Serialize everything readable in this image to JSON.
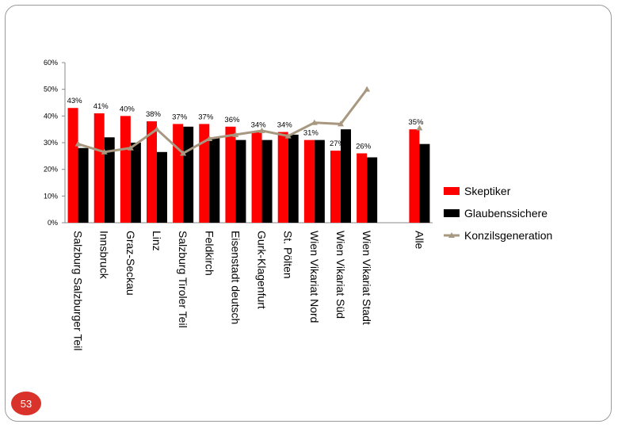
{
  "page_number": "53",
  "chart_data": {
    "type": "bar",
    "categories": [
      "Salzburg Salzburger Teil",
      "Innsbruck",
      "Graz-Seckau",
      "Linz",
      "Salzburg Tiroler Teil",
      "Feldkirch",
      "Eisenstadt deutsch",
      "Gurk-Klagenfurt",
      "St. Pölten",
      "Wien Vikariat Nord",
      "Wien Vikariat Süd",
      "Wien Vikariat Stadt",
      "",
      "Alle"
    ],
    "series": [
      {
        "name": "Skeptiker",
        "kind": "bar",
        "color": "#ff0000",
        "values": [
          43,
          41,
          40,
          38,
          37,
          37,
          36,
          34,
          34,
          31,
          27,
          26,
          null,
          35
        ],
        "labels": [
          "43%",
          "41%",
          "40%",
          "38%",
          "37%",
          "37%",
          "36%",
          "34%",
          "34%",
          "31%",
          "27%",
          "26%",
          "",
          "35%"
        ]
      },
      {
        "name": "Glaubenssichere",
        "kind": "bar",
        "color": "#000000",
        "values": [
          28,
          32,
          30,
          26.5,
          36,
          32,
          31,
          31,
          33,
          31,
          35,
          24.5,
          null,
          29.5
        ]
      },
      {
        "name": "Konzilsgeneration",
        "kind": "line",
        "color": "#a89880",
        "values": [
          29.5,
          26.5,
          28,
          35,
          26,
          31.5,
          33,
          34.5,
          32.5,
          37.5,
          37,
          50,
          null,
          35.5
        ]
      }
    ],
    "yticks": [
      "0%",
      "10%",
      "20%",
      "30%",
      "40%",
      "50%",
      "60%"
    ],
    "ylim": [
      0,
      60
    ],
    "grid": false,
    "legend_position": "right"
  }
}
